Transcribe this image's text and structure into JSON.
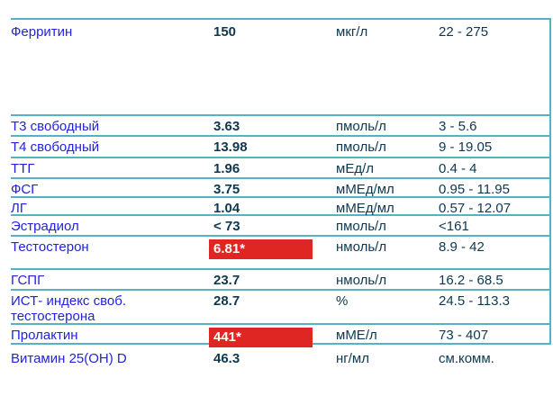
{
  "report": {
    "rows": [
      {
        "name": "Ферритин",
        "value": "150",
        "unit": "мкг/л",
        "range": "22 - 275",
        "flagged": false
      },
      {
        "name": "Т3 свободный",
        "value": "3.63",
        "unit": "пмоль/л",
        "range": "3 - 5.6",
        "flagged": false
      },
      {
        "name": "Т4 свободный",
        "value": "13.98",
        "unit": "пмоль/л",
        "range": "9 - 19.05",
        "flagged": false
      },
      {
        "name": "ТТГ",
        "value": "1.96",
        "unit": "мЕд/л",
        "range": "0.4 - 4",
        "flagged": false
      },
      {
        "name": "ФСГ",
        "value": "3.75",
        "unit": "мМЕд/мл",
        "range": "0.95 - 11.95",
        "flagged": false
      },
      {
        "name": "ЛГ",
        "value": "1.04",
        "unit": "мМЕд/мл",
        "range": "0.57 - 12.07",
        "flagged": false
      },
      {
        "name": "Эстрадиол",
        "value": "< 73",
        "unit": "пмоль/л",
        "range": "<161",
        "flagged": false
      },
      {
        "name": "Тестостерон",
        "value": "6.81*",
        "unit": "нмоль/л",
        "range": "8.9 - 42",
        "flagged": true
      },
      {
        "name": "ГСПГ",
        "value": "23.7",
        "unit": "нмоль/л",
        "range": "16.2 - 68.5",
        "flagged": false
      },
      {
        "name": "ИСТ- индекс своб. тестостерона",
        "value": "28.7",
        "unit": "%",
        "range": "24.5 - 113.3",
        "flagged": false
      },
      {
        "name": "Пролактин",
        "value": "441*",
        "unit": "мМЕ/л",
        "range": "73 - 407",
        "flagged": true
      },
      {
        "name": "Витамин 25(ОН) D",
        "value": "46.3",
        "unit": "нг/мл",
        "range": "см.комм.",
        "flagged": false
      }
    ],
    "colors": {
      "accent_line": "#55b1c3",
      "name_text": "#2323db",
      "value_text": "#0d384f",
      "abnormal_bg": "#e02622",
      "abnormal_text": "#ffffff"
    }
  }
}
